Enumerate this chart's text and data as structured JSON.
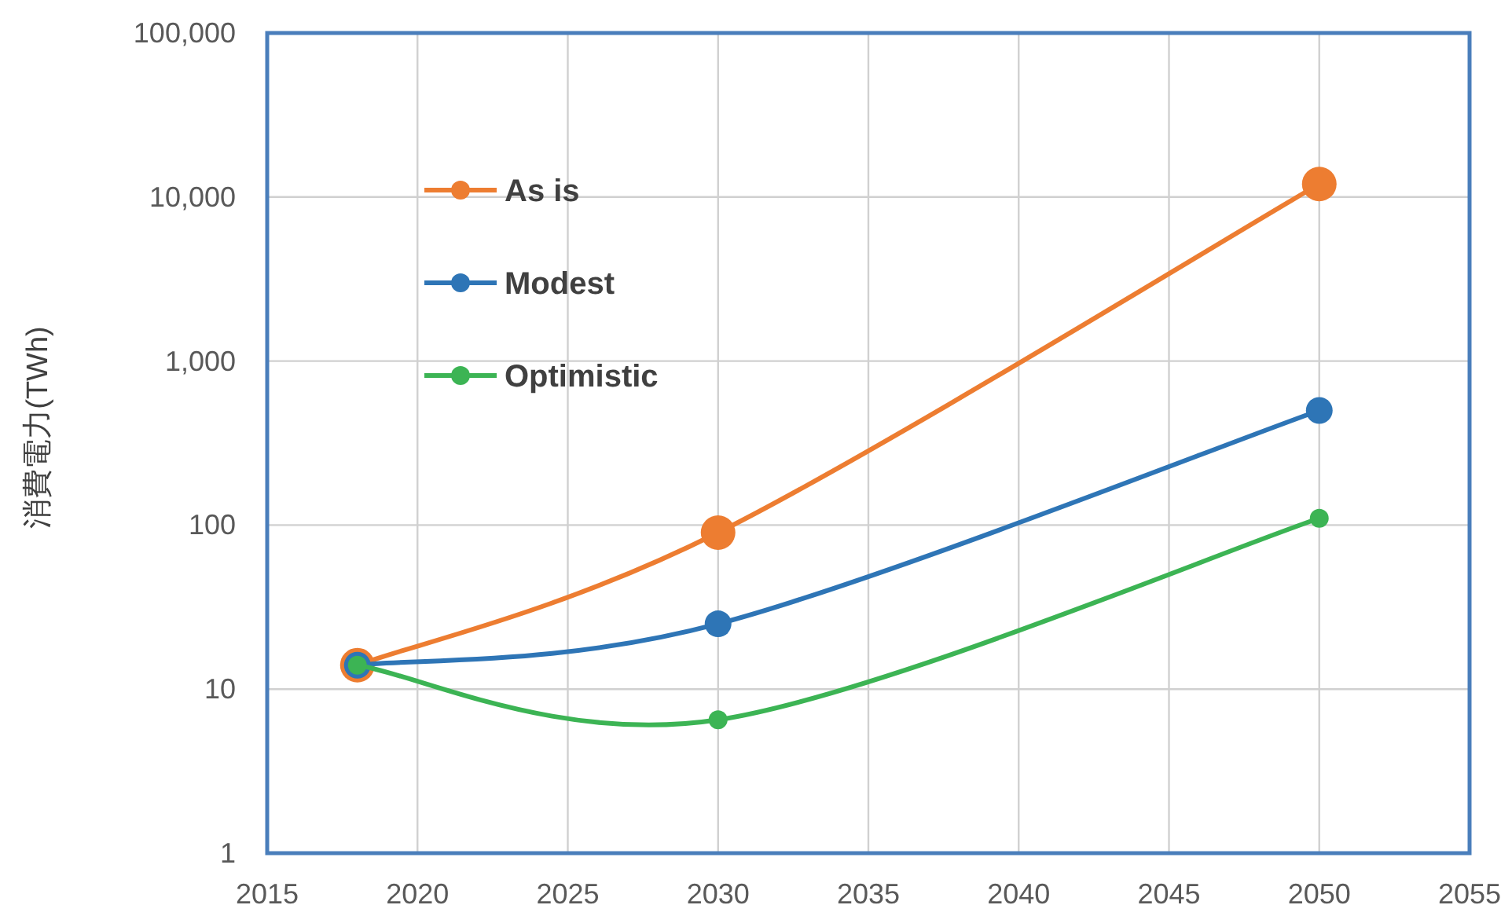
{
  "chart_data": {
    "type": "line",
    "ylabel": "消費電力(TWh)",
    "x": [
      2018,
      2030,
      2050
    ],
    "series": [
      {
        "name": "As is",
        "color": "#ed7d31",
        "values": [
          14,
          90,
          12000
        ]
      },
      {
        "name": "Modest",
        "color": "#2e75b6",
        "values": [
          14,
          25,
          500
        ]
      },
      {
        "name": "Optimistic",
        "color": "#3cb454",
        "values": [
          14,
          6.5,
          110
        ]
      }
    ],
    "xlim": [
      2015,
      2055
    ],
    "xticks": [
      2015,
      2020,
      2025,
      2030,
      2035,
      2040,
      2045,
      2050,
      2055
    ],
    "ylim": [
      1,
      100000
    ],
    "log": true,
    "yticks": [
      1,
      10,
      100,
      {
        "value": 1000,
        "label": "1,000"
      },
      {
        "value": 10000,
        "label": "10,000"
      },
      {
        "value": 100000,
        "label": "100,000"
      }
    ],
    "grid": true,
    "legend": "top left",
    "marker": "circle",
    "line_style": "solid"
  }
}
